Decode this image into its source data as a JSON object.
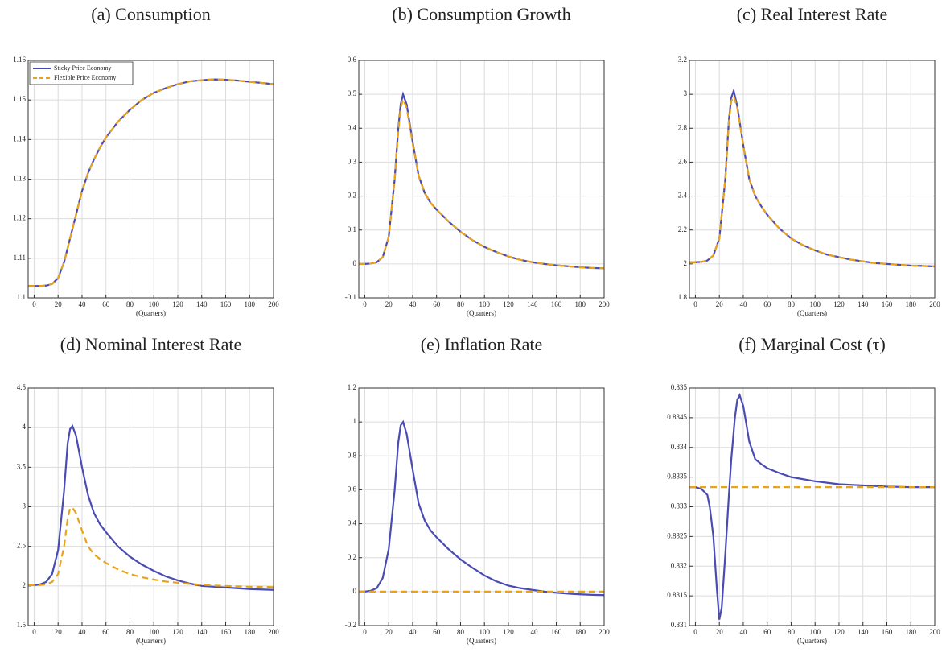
{
  "chart_data": [
    {
      "type": "line",
      "title": "(a) Consumption",
      "xlabel": "(Quarters)",
      "x": [
        -5,
        0,
        5,
        10,
        15,
        20,
        25,
        30,
        35,
        40,
        45,
        50,
        55,
        60,
        70,
        80,
        90,
        100,
        110,
        120,
        130,
        140,
        150,
        160,
        170,
        180,
        190,
        200
      ],
      "series": [
        {
          "name": "Sticky Price Economy",
          "color": "#4b4bb4",
          "linestyle": "solid",
          "values": [
            1.103,
            1.103,
            1.103,
            1.1031,
            1.1035,
            1.105,
            1.109,
            1.115,
            1.121,
            1.127,
            1.1315,
            1.135,
            1.138,
            1.1405,
            1.1445,
            1.1475,
            1.15,
            1.1518,
            1.153,
            1.154,
            1.1547,
            1.155,
            1.1552,
            1.1551,
            1.1549,
            1.1546,
            1.1543,
            1.154
          ]
        },
        {
          "name": "Flexible Price Economy",
          "color": "#e8a317",
          "linestyle": "dashed",
          "values": [
            1.103,
            1.103,
            1.103,
            1.1031,
            1.1035,
            1.105,
            1.109,
            1.115,
            1.121,
            1.127,
            1.1315,
            1.135,
            1.138,
            1.1405,
            1.1445,
            1.1475,
            1.15,
            1.1518,
            1.153,
            1.154,
            1.1547,
            1.155,
            1.1552,
            1.1551,
            1.1549,
            1.1546,
            1.1543,
            1.154
          ]
        }
      ],
      "xlim": [
        -5,
        200
      ],
      "xticks": [
        0,
        20,
        40,
        60,
        80,
        100,
        120,
        140,
        160,
        180,
        200
      ],
      "ylim": [
        1.1,
        1.16
      ],
      "yticks": [
        1.1,
        1.11,
        1.12,
        1.13,
        1.14,
        1.15,
        1.16
      ],
      "grid": true,
      "legend": "upper left"
    },
    {
      "type": "line",
      "title": "(b) Consumption Growth",
      "xlabel": "(Quarters)",
      "x": [
        -5,
        0,
        5,
        10,
        15,
        20,
        25,
        28,
        30,
        32,
        35,
        40,
        45,
        50,
        55,
        60,
        70,
        80,
        90,
        100,
        110,
        120,
        130,
        140,
        150,
        160,
        170,
        180,
        190,
        200
      ],
      "series": [
        {
          "color": "#4b4bb4",
          "linestyle": "solid",
          "values": [
            0,
            0,
            0.001,
            0.005,
            0.02,
            0.08,
            0.25,
            0.4,
            0.47,
            0.5,
            0.47,
            0.36,
            0.26,
            0.21,
            0.18,
            0.16,
            0.125,
            0.095,
            0.07,
            0.05,
            0.035,
            0.022,
            0.012,
            0.005,
            0,
            -0.004,
            -0.007,
            -0.01,
            -0.012,
            -0.013
          ]
        },
        {
          "color": "#e8a317",
          "linestyle": "dashed",
          "values": [
            0,
            0,
            0.001,
            0.005,
            0.02,
            0.08,
            0.25,
            0.39,
            0.46,
            0.485,
            0.46,
            0.355,
            0.26,
            0.21,
            0.18,
            0.16,
            0.125,
            0.095,
            0.07,
            0.05,
            0.035,
            0.022,
            0.012,
            0.005,
            0,
            -0.004,
            -0.007,
            -0.01,
            -0.012,
            -0.013
          ]
        }
      ],
      "xlim": [
        -5,
        200
      ],
      "xticks": [
        0,
        20,
        40,
        60,
        80,
        100,
        120,
        140,
        160,
        180,
        200
      ],
      "ylim": [
        -0.1,
        0.6
      ],
      "yticks": [
        -0.1,
        0,
        0.1,
        0.2,
        0.3,
        0.4,
        0.5,
        0.6
      ],
      "grid": true
    },
    {
      "type": "line",
      "title": "(c) Real Interest Rate",
      "xlabel": "(Quarters)",
      "x": [
        -5,
        0,
        5,
        10,
        15,
        20,
        25,
        28,
        30,
        32,
        35,
        40,
        45,
        50,
        55,
        60,
        70,
        80,
        90,
        100,
        110,
        120,
        130,
        140,
        150,
        160,
        170,
        180,
        190,
        200
      ],
      "series": [
        {
          "color": "#4b4bb4",
          "linestyle": "solid",
          "values": [
            2.01,
            2.01,
            2.012,
            2.02,
            2.05,
            2.15,
            2.5,
            2.85,
            2.98,
            3.02,
            2.93,
            2.7,
            2.5,
            2.4,
            2.34,
            2.29,
            2.21,
            2.15,
            2.11,
            2.08,
            2.055,
            2.04,
            2.025,
            2.015,
            2.005,
            2.0,
            1.995,
            1.99,
            1.988,
            1.985
          ]
        },
        {
          "color": "#e8a317",
          "linestyle": "dashed",
          "values": [
            2.01,
            2.01,
            2.012,
            2.02,
            2.05,
            2.15,
            2.5,
            2.84,
            2.96,
            2.99,
            2.92,
            2.7,
            2.5,
            2.4,
            2.34,
            2.29,
            2.21,
            2.15,
            2.11,
            2.08,
            2.055,
            2.04,
            2.025,
            2.015,
            2.005,
            2.0,
            1.995,
            1.99,
            1.988,
            1.985
          ]
        }
      ],
      "xlim": [
        -5,
        200
      ],
      "xticks": [
        0,
        20,
        40,
        60,
        80,
        100,
        120,
        140,
        160,
        180,
        200
      ],
      "ylim": [
        1.8,
        3.2
      ],
      "yticks": [
        1.8,
        2,
        2.2,
        2.4,
        2.6,
        2.8,
        3,
        3.2
      ],
      "grid": true
    },
    {
      "type": "line",
      "title": "(d) Nominal Interest Rate",
      "xlabel": "(Quarters)",
      "x": [
        -5,
        0,
        5,
        10,
        15,
        20,
        25,
        28,
        30,
        32,
        35,
        40,
        45,
        50,
        55,
        60,
        70,
        80,
        90,
        100,
        110,
        120,
        130,
        140,
        150,
        160,
        170,
        180,
        190,
        200
      ],
      "series": [
        {
          "color": "#4b4bb4",
          "linestyle": "solid",
          "values": [
            2.01,
            2.01,
            2.02,
            2.05,
            2.15,
            2.45,
            3.2,
            3.8,
            3.98,
            4.02,
            3.9,
            3.5,
            3.15,
            2.92,
            2.78,
            2.68,
            2.5,
            2.37,
            2.27,
            2.19,
            2.12,
            2.07,
            2.03,
            2.0,
            1.99,
            1.98,
            1.97,
            1.96,
            1.955,
            1.95
          ]
        },
        {
          "color": "#e8a317",
          "linestyle": "dashed",
          "values": [
            2.01,
            2.01,
            2.012,
            2.02,
            2.05,
            2.15,
            2.5,
            2.85,
            2.98,
            2.99,
            2.92,
            2.7,
            2.5,
            2.4,
            2.34,
            2.29,
            2.21,
            2.15,
            2.11,
            2.08,
            2.055,
            2.04,
            2.025,
            2.015,
            2.005,
            2.0,
            1.995,
            1.99,
            1.988,
            1.985
          ]
        }
      ],
      "xlim": [
        -5,
        200
      ],
      "xticks": [
        0,
        20,
        40,
        60,
        80,
        100,
        120,
        140,
        160,
        180,
        200
      ],
      "ylim": [
        1.5,
        4.5
      ],
      "yticks": [
        1.5,
        2,
        2.5,
        3,
        3.5,
        4,
        4.5
      ],
      "grid": true
    },
    {
      "type": "line",
      "title": "(e) Inflation Rate",
      "xlabel": "(Quarters)",
      "x": [
        -5,
        0,
        5,
        10,
        15,
        20,
        25,
        28,
        30,
        32,
        35,
        40,
        45,
        50,
        55,
        60,
        70,
        80,
        90,
        100,
        110,
        120,
        130,
        140,
        150,
        160,
        170,
        180,
        190,
        200
      ],
      "series": [
        {
          "color": "#4b4bb4",
          "linestyle": "solid",
          "values": [
            0,
            0,
            0.005,
            0.02,
            0.08,
            0.25,
            0.6,
            0.88,
            0.98,
            1.0,
            0.93,
            0.72,
            0.52,
            0.42,
            0.36,
            0.32,
            0.25,
            0.19,
            0.14,
            0.095,
            0.06,
            0.035,
            0.02,
            0.01,
            0,
            -0.007,
            -0.012,
            -0.016,
            -0.019,
            -0.021
          ]
        },
        {
          "color": "#e8a317",
          "linestyle": "dashed",
          "values": [
            0,
            0,
            0,
            0,
            0,
            0,
            0,
            0,
            0,
            0,
            0,
            0,
            0,
            0,
            0,
            0,
            0,
            0,
            0,
            0,
            0,
            0,
            0,
            0,
            0,
            0,
            0,
            0,
            0,
            0
          ]
        }
      ],
      "xlim": [
        -5,
        200
      ],
      "xticks": [
        0,
        20,
        40,
        60,
        80,
        100,
        120,
        140,
        160,
        180,
        200
      ],
      "ylim": [
        -0.2,
        1.2
      ],
      "yticks": [
        -0.2,
        0,
        0.2,
        0.4,
        0.6,
        0.8,
        1,
        1.2
      ],
      "grid": true
    },
    {
      "type": "line",
      "title": "(f) Marginal Cost (τ)",
      "xlabel": "(Quarters)",
      "x": [
        -5,
        0,
        5,
        10,
        12,
        15,
        18,
        20,
        22,
        25,
        28,
        30,
        33,
        35,
        37,
        40,
        45,
        50,
        55,
        60,
        70,
        80,
        100,
        120,
        140,
        160,
        180,
        200
      ],
      "series": [
        {
          "color": "#4b4bb4",
          "linestyle": "solid",
          "values": [
            0.83333,
            0.83333,
            0.8333,
            0.8332,
            0.833,
            0.8325,
            0.8316,
            0.8311,
            0.8313,
            0.8322,
            0.8332,
            0.8338,
            0.8345,
            0.8348,
            0.83488,
            0.8347,
            0.8341,
            0.8338,
            0.83372,
            0.83365,
            0.83357,
            0.8335,
            0.83343,
            0.83338,
            0.83336,
            0.83334,
            0.83333,
            0.83333
          ]
        },
        {
          "color": "#e8a317",
          "linestyle": "dashed",
          "values": [
            0.83333,
            0.83333,
            0.83333,
            0.83333,
            0.83333,
            0.83333,
            0.83333,
            0.83333,
            0.83333,
            0.83333,
            0.83333,
            0.83333,
            0.83333,
            0.83333,
            0.83333,
            0.83333,
            0.83333,
            0.83333,
            0.83333,
            0.83333,
            0.83333,
            0.83333,
            0.83333,
            0.83333,
            0.83333,
            0.83333,
            0.83333,
            0.83333
          ]
        }
      ],
      "xlim": [
        -5,
        200
      ],
      "xticks": [
        0,
        20,
        40,
        60,
        80,
        100,
        120,
        140,
        160,
        180,
        200
      ],
      "ylim": [
        0.831,
        0.835
      ],
      "yticks": [
        0.831,
        0.8315,
        0.832,
        0.8325,
        0.833,
        0.8335,
        0.834,
        0.8345,
        0.835
      ],
      "grid": true
    }
  ]
}
